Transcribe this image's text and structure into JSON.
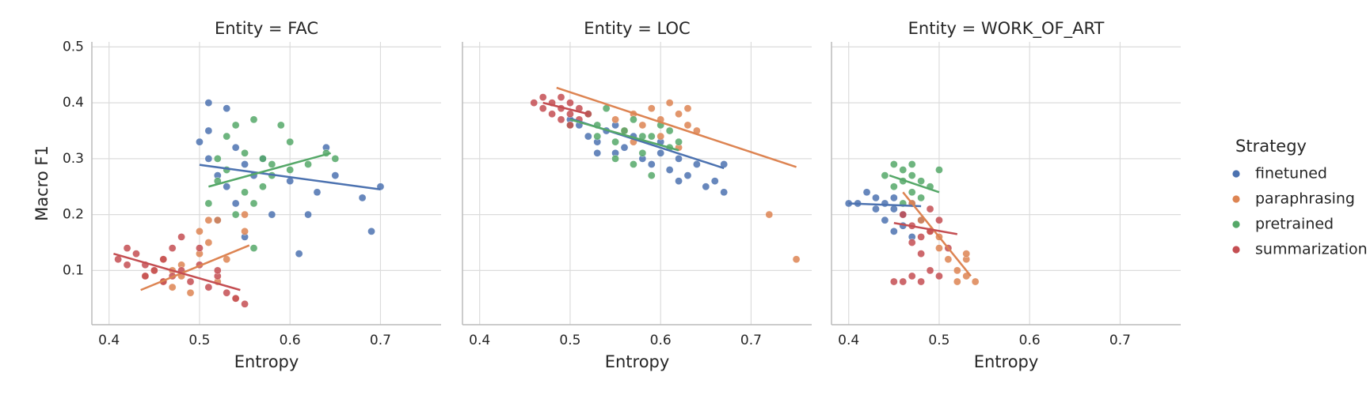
{
  "legend": {
    "title": "Strategy",
    "position": "right"
  },
  "chart_data": [
    {
      "type": "scatter",
      "title": "Entity = FAC",
      "xlabel": "Entropy",
      "ylabel": "Macro F1",
      "xlim": [
        0.381,
        0.767
      ],
      "ylim": [
        0.003,
        0.509
      ],
      "xticks": [
        0.4,
        0.5,
        0.6,
        0.7
      ],
      "yticks": [
        0.1,
        0.2,
        0.3,
        0.4,
        0.5
      ],
      "grid": true,
      "series": [
        {
          "name": "finetuned",
          "color": "#4c72b0",
          "x": [
            0.51,
            0.53,
            0.5,
            0.51,
            0.52,
            0.53,
            0.54,
            0.55,
            0.56,
            0.58,
            0.61,
            0.62,
            0.64,
            0.65,
            0.68,
            0.69,
            0.7,
            0.52,
            0.54,
            0.57,
            0.6,
            0.63,
            0.55,
            0.51
          ],
          "y": [
            0.4,
            0.39,
            0.33,
            0.3,
            0.27,
            0.25,
            0.32,
            0.29,
            0.27,
            0.2,
            0.13,
            0.2,
            0.32,
            0.27,
            0.23,
            0.17,
            0.25,
            0.19,
            0.22,
            0.3,
            0.26,
            0.24,
            0.16,
            0.35
          ],
          "fit": {
            "x": [
              0.5,
              0.7
            ],
            "y": [
              0.289,
              0.245
            ]
          }
        },
        {
          "name": "paraphrasing",
          "color": "#dd8452",
          "x": [
            0.44,
            0.45,
            0.46,
            0.47,
            0.48,
            0.49,
            0.5,
            0.5,
            0.51,
            0.52,
            0.53,
            0.54,
            0.55,
            0.55,
            0.46,
            0.48,
            0.52,
            0.51,
            0.47
          ],
          "y": [
            0.09,
            0.1,
            0.08,
            0.07,
            0.11,
            0.06,
            0.13,
            0.17,
            0.15,
            0.19,
            0.12,
            0.05,
            0.2,
            0.17,
            0.12,
            0.09,
            0.08,
            0.19,
            0.1
          ],
          "fit": {
            "x": [
              0.435,
              0.555
            ],
            "y": [
              0.065,
              0.145
            ]
          }
        },
        {
          "name": "pretrained",
          "color": "#55a868",
          "x": [
            0.51,
            0.52,
            0.53,
            0.54,
            0.55,
            0.56,
            0.57,
            0.58,
            0.59,
            0.6,
            0.62,
            0.64,
            0.65,
            0.53,
            0.55,
            0.56,
            0.57,
            0.58,
            0.54,
            0.56,
            0.6,
            0.52
          ],
          "y": [
            0.22,
            0.26,
            0.34,
            0.36,
            0.31,
            0.37,
            0.3,
            0.27,
            0.36,
            0.33,
            0.29,
            0.31,
            0.3,
            0.28,
            0.24,
            0.22,
            0.25,
            0.29,
            0.2,
            0.14,
            0.28,
            0.3
          ],
          "fit": {
            "x": [
              0.51,
              0.645
            ],
            "y": [
              0.25,
              0.31
            ]
          }
        },
        {
          "name": "summarization",
          "color": "#c44e52",
          "x": [
            0.41,
            0.42,
            0.43,
            0.44,
            0.45,
            0.46,
            0.47,
            0.48,
            0.49,
            0.5,
            0.51,
            0.52,
            0.53,
            0.54,
            0.55,
            0.42,
            0.44,
            0.47,
            0.5,
            0.52,
            0.48,
            0.46
          ],
          "y": [
            0.12,
            0.14,
            0.13,
            0.11,
            0.1,
            0.12,
            0.09,
            0.1,
            0.08,
            0.11,
            0.07,
            0.09,
            0.06,
            0.05,
            0.04,
            0.11,
            0.09,
            0.14,
            0.14,
            0.1,
            0.16,
            0.08
          ],
          "fit": {
            "x": [
              0.405,
              0.545
            ],
            "y": [
              0.13,
              0.065
            ]
          }
        }
      ]
    },
    {
      "type": "scatter",
      "title": "Entity = LOC",
      "xlabel": "Entropy",
      "xlim": [
        0.381,
        0.767
      ],
      "ylim": [
        0.003,
        0.509
      ],
      "xticks": [
        0.4,
        0.5,
        0.6,
        0.7
      ],
      "yticks": [
        0.1,
        0.2,
        0.3,
        0.4,
        0.5
      ],
      "grid": true,
      "series": [
        {
          "name": "finetuned",
          "color": "#4c72b0",
          "x": [
            0.5,
            0.51,
            0.52,
            0.53,
            0.54,
            0.55,
            0.56,
            0.57,
            0.58,
            0.59,
            0.6,
            0.61,
            0.62,
            0.63,
            0.64,
            0.65,
            0.66,
            0.67,
            0.55,
            0.6,
            0.67,
            0.62,
            0.53
          ],
          "y": [
            0.37,
            0.36,
            0.34,
            0.33,
            0.35,
            0.31,
            0.32,
            0.34,
            0.3,
            0.29,
            0.31,
            0.28,
            0.3,
            0.27,
            0.29,
            0.25,
            0.26,
            0.24,
            0.36,
            0.33,
            0.29,
            0.26,
            0.31
          ],
          "fit": {
            "x": [
              0.5,
              0.67
            ],
            "y": [
              0.372,
              0.283
            ]
          }
        },
        {
          "name": "paraphrasing",
          "color": "#dd8452",
          "x": [
            0.55,
            0.57,
            0.58,
            0.59,
            0.6,
            0.61,
            0.62,
            0.63,
            0.64,
            0.6,
            0.62,
            0.57,
            0.63,
            0.72,
            0.75,
            0.56
          ],
          "y": [
            0.37,
            0.38,
            0.36,
            0.39,
            0.37,
            0.4,
            0.38,
            0.36,
            0.35,
            0.34,
            0.32,
            0.33,
            0.39,
            0.2,
            0.12,
            0.35
          ],
          "fit": {
            "x": [
              0.485,
              0.75
            ],
            "y": [
              0.427,
              0.285
            ]
          }
        },
        {
          "name": "pretrained",
          "color": "#55a868",
          "x": [
            0.5,
            0.52,
            0.53,
            0.54,
            0.55,
            0.56,
            0.57,
            0.58,
            0.59,
            0.6,
            0.61,
            0.62,
            0.55,
            0.57,
            0.59,
            0.53,
            0.61,
            0.58
          ],
          "y": [
            0.36,
            0.38,
            0.34,
            0.39,
            0.33,
            0.35,
            0.37,
            0.31,
            0.34,
            0.36,
            0.32,
            0.33,
            0.3,
            0.29,
            0.27,
            0.36,
            0.35,
            0.34
          ],
          "fit": {
            "x": [
              0.5,
              0.62
            ],
            "y": [
              0.37,
              0.315
            ]
          }
        },
        {
          "name": "summarization",
          "color": "#c44e52",
          "x": [
            0.46,
            0.47,
            0.48,
            0.49,
            0.49,
            0.5,
            0.5,
            0.51,
            0.51,
            0.48,
            0.47,
            0.5,
            0.52,
            0.49
          ],
          "y": [
            0.4,
            0.41,
            0.4,
            0.39,
            0.41,
            0.4,
            0.38,
            0.39,
            0.37,
            0.38,
            0.39,
            0.36,
            0.38,
            0.37
          ],
          "fit": {
            "x": [
              0.47,
              0.52
            ],
            "y": [
              0.4,
              0.38
            ]
          }
        }
      ]
    },
    {
      "type": "scatter",
      "title": "Entity = WORK_OF_ART",
      "xlabel": "Entropy",
      "xlim": [
        0.381,
        0.767
      ],
      "ylim": [
        0.003,
        0.509
      ],
      "xticks": [
        0.4,
        0.5,
        0.6,
        0.7
      ],
      "yticks": [
        0.1,
        0.2,
        0.3,
        0.4,
        0.5
      ],
      "grid": true,
      "series": [
        {
          "name": "finetuned",
          "color": "#4c72b0",
          "x": [
            0.4,
            0.41,
            0.42,
            0.43,
            0.44,
            0.44,
            0.45,
            0.45,
            0.46,
            0.46,
            0.47,
            0.48,
            0.43,
            0.45,
            0.47
          ],
          "y": [
            0.22,
            0.22,
            0.24,
            0.21,
            0.22,
            0.19,
            0.21,
            0.23,
            0.2,
            0.18,
            0.22,
            0.19,
            0.23,
            0.17,
            0.16
          ],
          "fit": {
            "x": [
              0.4,
              0.48
            ],
            "y": [
              0.22,
              0.215
            ]
          }
        },
        {
          "name": "paraphrasing",
          "color": "#dd8452",
          "x": [
            0.47,
            0.48,
            0.49,
            0.5,
            0.51,
            0.52,
            0.53,
            0.53,
            0.54,
            0.53,
            0.52,
            0.5
          ],
          "y": [
            0.22,
            0.19,
            0.17,
            0.14,
            0.12,
            0.1,
            0.09,
            0.12,
            0.08,
            0.13,
            0.08,
            0.16
          ],
          "fit": {
            "x": [
              0.46,
              0.535
            ],
            "y": [
              0.24,
              0.09
            ]
          }
        },
        {
          "name": "pretrained",
          "color": "#55a868",
          "x": [
            0.45,
            0.46,
            0.46,
            0.47,
            0.45,
            0.47,
            0.48,
            0.49,
            0.5,
            0.46,
            0.48,
            0.44,
            0.47
          ],
          "y": [
            0.29,
            0.28,
            0.26,
            0.27,
            0.25,
            0.24,
            0.26,
            0.25,
            0.28,
            0.22,
            0.23,
            0.27,
            0.29
          ],
          "fit": {
            "x": [
              0.445,
              0.5
            ],
            "y": [
              0.27,
              0.24
            ]
          }
        },
        {
          "name": "summarization",
          "color": "#c44e52",
          "x": [
            0.46,
            0.47,
            0.48,
            0.48,
            0.49,
            0.47,
            0.46,
            0.5,
            0.49,
            0.51,
            0.45,
            0.48,
            0.47,
            0.5,
            0.49
          ],
          "y": [
            0.2,
            0.18,
            0.16,
            0.13,
            0.1,
            0.09,
            0.08,
            0.19,
            0.21,
            0.14,
            0.08,
            0.08,
            0.15,
            0.09,
            0.17
          ],
          "fit": {
            "x": [
              0.45,
              0.52
            ],
            "y": [
              0.185,
              0.165
            ]
          }
        }
      ]
    }
  ]
}
